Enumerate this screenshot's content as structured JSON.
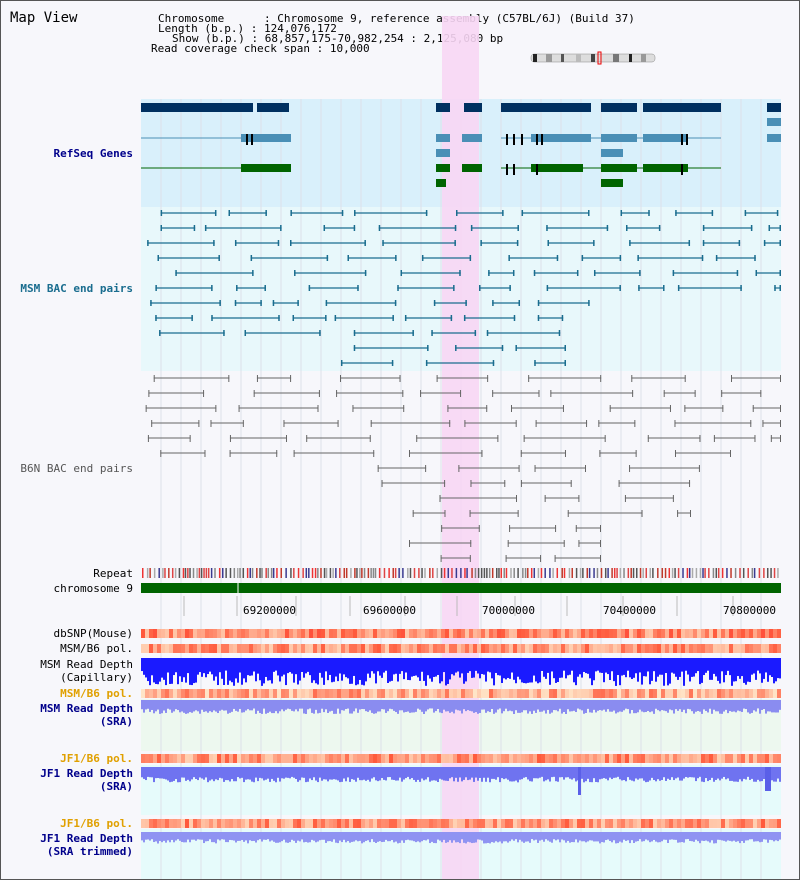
{
  "title": "Map View",
  "header": {
    "chromosome_label": "Chromosome",
    "chromosome_value": "Chromosome 9, reference assembly (C57BL/6J) (Build 37)",
    "length_label": "Length (b.p.)",
    "length_value": "124,076,172",
    "show_label": "Show (b.p.)",
    "show_value": "68,857,175-70,982,254 : 2,125,080 bp",
    "coverage_label": "Read coverage check span",
    "coverage_value": "10,000"
  },
  "ideogram": {
    "name": "chromosome-ideogram"
  },
  "tracks": {
    "refseq": "RefSeq Genes",
    "msm_bac": "MSM BAC end pairs",
    "b6n_bac": "B6N BAC end pairs",
    "repeat": "Repeat",
    "chromosome": "chromosome 9",
    "dbsnp": "dbSNP(Mouse)",
    "msm_b6_pol_1": "MSM/B6 pol.",
    "msm_depth_cap_1": "MSM Read Depth",
    "msm_depth_cap_2": "(Capillary)",
    "msm_b6_pol_2": "MSM/B6 pol.",
    "msm_depth_sra_1": "MSM Read Depth",
    "msm_depth_sra_2": "(SRA)",
    "jf1_pol_1": "JF1/B6 pol.",
    "jf1_depth_1": "JF1 Read Depth",
    "jf1_depth_2": "(SRA)",
    "jf1_pol_2": "JF1/B6 pol.",
    "jf1_trim_1": "JF1 Read Depth",
    "jf1_trim_2": "(SRA trimmed)"
  },
  "axis": {
    "ticks": [
      "69200000",
      "69600000",
      "70000000",
      "70400000",
      "70800000"
    ]
  },
  "colors": {
    "blue_label": "#00008b",
    "teal_label": "#1a6d8f",
    "orange_label": "#e0a000",
    "highlight": "#f7d6f4",
    "refseq_bg": "#d9f0fb",
    "msm_bg": "#e8f8fb",
    "green": "#006400",
    "navy": "#003060"
  }
}
